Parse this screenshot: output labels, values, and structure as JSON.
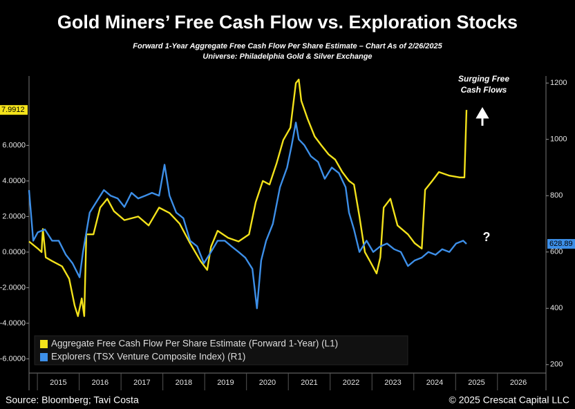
{
  "chart_data": {
    "type": "line",
    "title": "Gold Miners’ Free Cash Flow vs. Exploration Stocks",
    "subtitle": [
      "Forward 1-Year Aggregate Free Cash Flow Per Share Estimate – Chart As of 2/26/2025",
      "Universe: Philadelphia Gold & Silver Exchange"
    ],
    "annotations": [
      "Surging Free",
      "Cash Flows",
      "?"
    ],
    "source": "Source: Bloomberg; Tavi Costa",
    "copyright": "© 2025 Crescat Capital LLC",
    "xlim": [
      2014.8,
      2027.16
    ],
    "xticks": [
      2015,
      2016,
      2017,
      2018,
      2019,
      2020,
      2021,
      2022,
      2023,
      2024,
      2025,
      2026
    ],
    "ylim": [
      -6.8,
      9.9
    ],
    "yticks": [
      {
        "value": 6,
        "label": "6.0000"
      },
      {
        "value": 4,
        "label": "4.0000"
      },
      {
        "value": 2,
        "label": "2.0000"
      },
      {
        "value": 0,
        "label": "0.0000"
      },
      {
        "value": -2,
        "label": "-2.0000"
      },
      {
        "value": -4,
        "label": "-4.0000"
      },
      {
        "value": -6,
        "label": "-6.0000"
      }
    ],
    "y2lim": [
      170,
      1225
    ],
    "y2ticks": [
      200,
      400,
      600,
      800,
      1000,
      1200
    ],
    "series": [
      {
        "name": "Aggregate Free Cash Flow Per Share Estimate (Forward 1-Year) (L1)",
        "color": "#f3e21b",
        "x": [
          2014.8,
          2015.01,
          2015.1,
          2015.13,
          2015.2,
          2015.35,
          2015.59,
          2015.76,
          2015.89,
          2015.97,
          2016.06,
          2016.12,
          2016.17,
          2016.34,
          2016.5,
          2016.67,
          2016.83,
          2017.08,
          2017.41,
          2017.66,
          2017.91,
          2018.16,
          2018.4,
          2018.65,
          2018.9,
          2019.06,
          2019.15,
          2019.31,
          2019.56,
          2019.81,
          2020.06,
          2020.22,
          2020.39,
          2020.55,
          2020.72,
          2020.88,
          2021.05,
          2021.18,
          2021.25,
          2021.31,
          2021.46,
          2021.63,
          2021.79,
          2021.96,
          2022.12,
          2022.29,
          2022.45,
          2022.57,
          2022.7,
          2022.83,
          2022.95,
          2023.11,
          2023.2,
          2023.28,
          2023.44,
          2023.61,
          2023.86,
          2024.02,
          2024.19,
          2024.27,
          2024.44,
          2024.6,
          2024.85,
          2025.1,
          2025.21,
          2025.26
        ],
        "values": [
          0.6,
          0.2,
          0.0,
          1.3,
          -0.3,
          -0.5,
          -0.8,
          -1.5,
          -3.0,
          -3.6,
          -2.6,
          -3.6,
          1.0,
          1.0,
          2.5,
          3.0,
          2.3,
          1.8,
          2.0,
          1.5,
          2.5,
          2.2,
          1.6,
          0.5,
          -0.5,
          -1.0,
          0.3,
          1.2,
          0.8,
          0.6,
          1.0,
          2.8,
          4.0,
          3.8,
          5.0,
          6.3,
          7.0,
          9.5,
          9.7,
          8.5,
          7.5,
          6.5,
          6.0,
          5.5,
          5.2,
          4.5,
          4.0,
          3.8,
          2.0,
          0.0,
          -0.5,
          -1.2,
          -0.3,
          2.5,
          3.0,
          1.5,
          1.0,
          0.5,
          0.2,
          3.5,
          4.0,
          4.5,
          4.3,
          4.2,
          4.2,
          7.9912
        ]
      },
      {
        "name": "Explorers (TSX Venture Composite Index) (R1)",
        "color": "#3d8fe8",
        "axis": "y2",
        "x": [
          2014.8,
          2014.9,
          2015.01,
          2015.18,
          2015.35,
          2015.51,
          2015.68,
          2015.84,
          2016.01,
          2016.09,
          2016.25,
          2016.42,
          2016.59,
          2016.75,
          2016.92,
          2017.08,
          2017.25,
          2017.41,
          2017.58,
          2017.74,
          2017.91,
          2018.04,
          2018.16,
          2018.32,
          2018.49,
          2018.65,
          2018.82,
          2018.98,
          2019.15,
          2019.31,
          2019.48,
          2019.64,
          2019.81,
          2019.97,
          2020.14,
          2020.25,
          2020.35,
          2020.47,
          2020.63,
          2020.8,
          2020.97,
          2021.08,
          2021.18,
          2021.25,
          2021.38,
          2021.54,
          2021.71,
          2021.87,
          2022.04,
          2022.21,
          2022.37,
          2022.45,
          2022.57,
          2022.7,
          2022.87,
          2023.03,
          2023.2,
          2023.36,
          2023.53,
          2023.69,
          2023.86,
          2024.02,
          2024.19,
          2024.35,
          2024.52,
          2024.68,
          2024.85,
          2025.01,
          2025.18,
          2025.26
        ],
        "values": [
          820,
          640,
          670,
          680,
          640,
          640,
          590,
          560,
          510,
          600,
          740,
          780,
          820,
          800,
          790,
          760,
          810,
          790,
          800,
          810,
          800,
          910,
          800,
          740,
          720,
          640,
          620,
          560,
          600,
          640,
          640,
          620,
          600,
          580,
          540,
          400,
          570,
          640,
          700,
          830,
          900,
          980,
          1060,
          1000,
          980,
          940,
          920,
          860,
          900,
          880,
          830,
          740,
          680,
          600,
          640,
          600,
          620,
          630,
          610,
          600,
          550,
          570,
          580,
          600,
          590,
          610,
          600,
          630,
          640,
          628.89
        ]
      }
    ]
  }
}
